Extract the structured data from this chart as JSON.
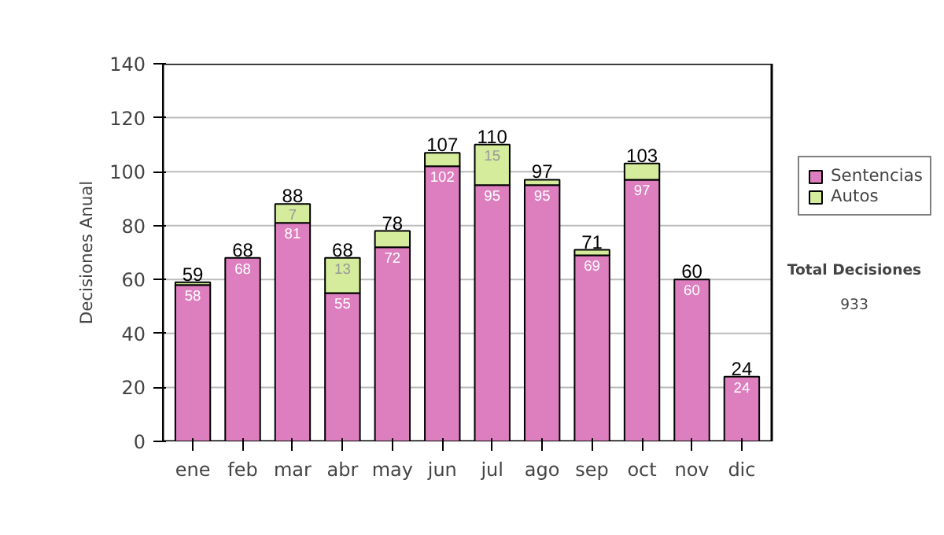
{
  "chart_data": {
    "type": "bar",
    "stacked": true,
    "ylabel": "Decisiones Anual",
    "categories": [
      "ene",
      "feb",
      "mar",
      "abr",
      "may",
      "jun",
      "jul",
      "ago",
      "sep",
      "oct",
      "nov",
      "dic"
    ],
    "series": [
      {
        "name": "Sentencias",
        "color": "#dd7fbf",
        "values": [
          58,
          68,
          81,
          55,
          72,
          102,
          95,
          95,
          69,
          97,
          60,
          24
        ],
        "value_labels": [
          "58",
          "68",
          "81",
          "55",
          "72",
          "102",
          "95",
          "95",
          "69",
          "97",
          "60",
          "24"
        ]
      },
      {
        "name": "Autos",
        "color": "#d4ec9c",
        "values": [
          1,
          0,
          7,
          13,
          6,
          5,
          15,
          2,
          2,
          6,
          0,
          0
        ],
        "value_labels": [
          null,
          null,
          "7",
          "13",
          null,
          null,
          "15",
          null,
          null,
          null,
          null,
          null
        ]
      }
    ],
    "totals": [
      "59",
      "68",
      "88",
      "68",
      "78",
      "107",
      "110",
      "97",
      "71",
      "103",
      "60",
      "24"
    ],
    "ylim": [
      0,
      140
    ],
    "yticks": [
      0,
      20,
      40,
      60,
      80,
      100,
      120,
      140
    ],
    "grid": "y",
    "legend": "right",
    "annotations": [
      "Total Decisiones",
      "933"
    ]
  }
}
